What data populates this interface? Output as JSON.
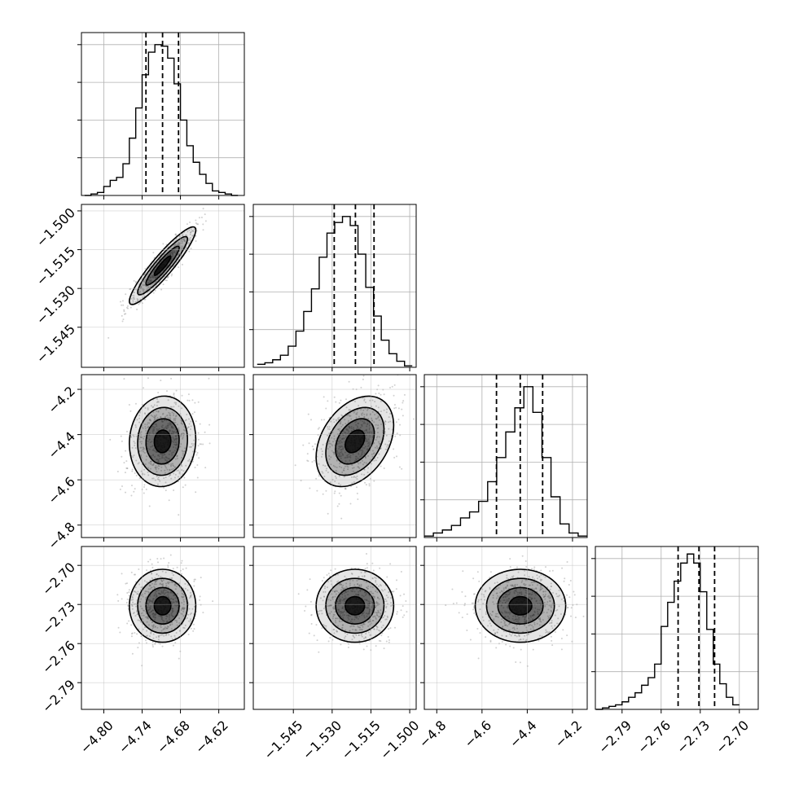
{
  "chart_data": {
    "type": "corner",
    "parameters": [
      {
        "ticks": [
          -4.8,
          -4.74,
          -4.68,
          -4.62
        ],
        "tick_labels": [
          "−4.80",
          "−4.74",
          "−4.68",
          "−4.62"
        ],
        "range": [
          -4.835,
          -4.58
        ],
        "quantiles": [
          -4.734,
          -4.708,
          -4.683
        ],
        "hist_x": [
          -4.825,
          -4.815,
          -4.805,
          -4.795,
          -4.785,
          -4.775,
          -4.765,
          -4.755,
          -4.745,
          -4.735,
          -4.725,
          -4.715,
          -4.705,
          -4.695,
          -4.685,
          -4.675,
          -4.665,
          -4.655,
          -4.645,
          -4.635,
          -4.625,
          -4.615,
          -4.605,
          -4.595
        ],
        "hist_y": [
          0,
          0.01,
          0.02,
          0.06,
          0.1,
          0.12,
          0.21,
          0.38,
          0.58,
          0.8,
          0.95,
          1.0,
          0.99,
          0.91,
          0.74,
          0.5,
          0.33,
          0.22,
          0.14,
          0.08,
          0.03,
          0.02,
          0.01,
          0
        ]
      },
      {
        "ticks": [
          -1.545,
          -1.53,
          -1.515,
          -1.5
        ],
        "tick_labels": [
          "−1.545",
          "−1.530",
          "−1.515",
          "−1.500"
        ],
        "range": [
          -1.5605,
          -1.4975
        ],
        "quantiles": [
          -1.5292,
          -1.521,
          -1.5138
        ],
        "hist_x": [
          -1.5575,
          -1.5545,
          -1.5515,
          -1.5485,
          -1.5455,
          -1.5425,
          -1.5395,
          -1.5365,
          -1.5335,
          -1.5305,
          -1.5275,
          -1.5245,
          -1.5215,
          -1.5185,
          -1.5155,
          -1.5125,
          -1.5095,
          -1.5065,
          -1.5035,
          -1.5005
        ],
        "hist_y": [
          0.02,
          0.03,
          0.05,
          0.08,
          0.14,
          0.24,
          0.37,
          0.52,
          0.73,
          0.89,
          0.96,
          1.0,
          0.94,
          0.75,
          0.53,
          0.34,
          0.18,
          0.09,
          0.04,
          0.01
        ]
      },
      {
        "ticks": [
          -4.8,
          -4.6,
          -4.4,
          -4.2
        ],
        "tick_labels": [
          "−4.8",
          "−4.6",
          "−4.4",
          "−4.2"
        ],
        "range": [
          -4.855,
          -4.135
        ],
        "quantiles": [
          -4.536,
          -4.431,
          -4.332
        ],
        "hist_x": [
          -4.835,
          -4.795,
          -4.755,
          -4.715,
          -4.675,
          -4.635,
          -4.595,
          -4.555,
          -4.515,
          -4.475,
          -4.435,
          -4.395,
          -4.355,
          -4.315,
          -4.275,
          -4.235,
          -4.195,
          -4.155
        ],
        "hist_y": [
          0.01,
          0.03,
          0.05,
          0.08,
          0.13,
          0.17,
          0.24,
          0.37,
          0.53,
          0.7,
          0.86,
          1.0,
          0.83,
          0.53,
          0.27,
          0.09,
          0.03,
          0.01
        ]
      },
      {
        "ticks": [
          -2.79,
          -2.76,
          -2.73,
          -2.7
        ],
        "tick_labels": [
          "−2.79",
          "−2.76",
          "−2.73",
          "−2.70"
        ],
        "range": [
          -2.8105,
          -2.6855
        ],
        "quantiles": [
          -2.747,
          -2.731,
          -2.719
        ],
        "hist_x": [
          -2.8075,
          -2.8025,
          -2.7975,
          -2.7925,
          -2.7875,
          -2.7825,
          -2.7775,
          -2.7725,
          -2.7675,
          -2.7625,
          -2.7575,
          -2.7525,
          -2.7475,
          -2.7425,
          -2.7375,
          -2.7325,
          -2.7275,
          -2.7225,
          -2.7175,
          -2.7125,
          -2.7075,
          -2.7025
        ],
        "hist_y": [
          0.0,
          0.01,
          0.02,
          0.03,
          0.05,
          0.08,
          0.11,
          0.16,
          0.21,
          0.3,
          0.55,
          0.71,
          0.85,
          0.97,
          1.03,
          0.97,
          0.78,
          0.53,
          0.3,
          0.17,
          0.08,
          0.03
        ]
      }
    ],
    "pairs": [
      {
        "i": 1,
        "j": 0,
        "mean": [
          -4.708,
          -1.5212
        ],
        "sd": [
          0.026,
          0.0075
        ],
        "rho": 0.92
      },
      {
        "i": 2,
        "j": 0,
        "mean": [
          -4.708,
          -4.43
        ],
        "sd": [
          0.026,
          0.1
        ],
        "rho": 0.05
      },
      {
        "i": 2,
        "j": 1,
        "mean": [
          -1.5212,
          -4.43
        ],
        "sd": [
          0.0075,
          0.1
        ],
        "rho": 0.35
      },
      {
        "i": 3,
        "j": 0,
        "mean": [
          -4.708,
          -2.731
        ],
        "sd": [
          0.026,
          0.014
        ],
        "rho": 0.0
      },
      {
        "i": 3,
        "j": 1,
        "mean": [
          -1.5212,
          -2.731
        ],
        "sd": [
          0.0075,
          0.014
        ],
        "rho": 0.0
      },
      {
        "i": 3,
        "j": 2,
        "mean": [
          -4.43,
          -2.731
        ],
        "sd": [
          0.1,
          0.014
        ],
        "rho": 0.0
      }
    ],
    "grid": true,
    "line_color": "#000000",
    "density_color": "#000000",
    "grid_color": "#b0b0b0"
  }
}
